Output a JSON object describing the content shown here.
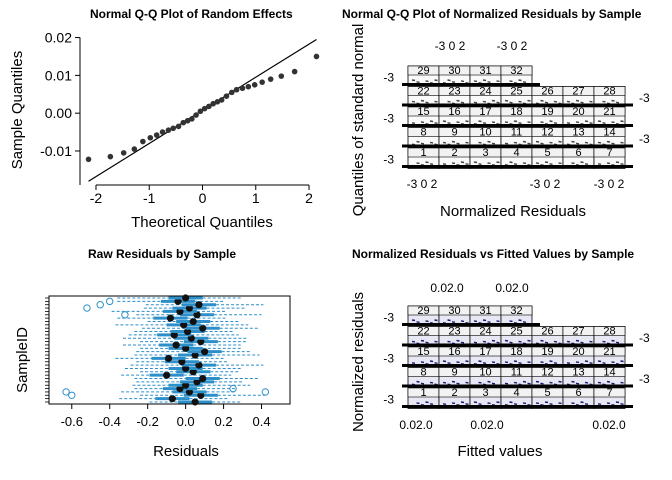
{
  "panels": {
    "qq_random_effects": {
      "title": "Normal Q-Q Plot of Random Effects",
      "xlabel": "Theoretical Quantiles",
      "ylabel": "Sample Quantiles",
      "xticks": [
        "-2",
        "-1",
        "0",
        "1",
        "2"
      ],
      "yticks": [
        "-0.01",
        "0.00",
        "0.01",
        "0.02"
      ]
    },
    "qq_normalized_residuals": {
      "title": "Normal Q-Q Plot of Normalized Residuals by Sample",
      "xlabel": "Normalized Residuals",
      "ylabel": "Quantiles of standard normal",
      "tick_text": "-3 0 2",
      "ytick_text": "-3",
      "strip_labels": [
        [
          "29",
          "30",
          "31",
          "32"
        ],
        [
          "22",
          "23",
          "24",
          "25",
          "26",
          "27",
          "28"
        ],
        [
          "15",
          "16",
          "17",
          "18",
          "19",
          "20",
          "21"
        ],
        [
          "8",
          "9",
          "10",
          "11",
          "12",
          "13",
          "14"
        ],
        [
          "1",
          "2",
          "3",
          "4",
          "5",
          "6",
          "7"
        ]
      ]
    },
    "raw_residuals": {
      "title": "Raw Residuals by Sample",
      "xlabel": "Residuals",
      "ylabel": "SampleID",
      "xticks": [
        "-0.6",
        "-0.4",
        "-0.2",
        "0.0",
        "0.2",
        "0.4"
      ]
    },
    "resid_vs_fitted": {
      "title": "Normalized Residuals vs Fitted Values by Sample",
      "xlabel": "Fitted values",
      "ylabel": "Normalized residuals",
      "tick_text": "0.02.0",
      "ytick_text": "-3",
      "strip_labels": [
        [
          "29",
          "30",
          "31",
          "32"
        ],
        [
          "22",
          "23",
          "24",
          "25",
          "26",
          "27",
          "28"
        ],
        [
          "15",
          "16",
          "17",
          "18",
          "19",
          "20",
          "21"
        ],
        [
          "8",
          "9",
          "10",
          "11",
          "12",
          "13",
          "14"
        ],
        [
          "1",
          "2",
          "3",
          "4",
          "5",
          "6",
          "7"
        ]
      ]
    }
  },
  "chart_data": [
    {
      "type": "scatter",
      "title": "Normal Q-Q Plot of Random Effects",
      "xlabel": "Theoretical Quantiles",
      "ylabel": "Sample Quantiles",
      "xlim": [
        -2.3,
        2.3
      ],
      "ylim": [
        -0.019,
        0.022
      ],
      "points": [
        [
          -2.14,
          -0.0122
        ],
        [
          -1.73,
          -0.0115
        ],
        [
          -1.48,
          -0.0105
        ],
        [
          -1.28,
          -0.0095
        ],
        [
          -1.12,
          -0.0075
        ],
        [
          -0.98,
          -0.0065
        ],
        [
          -0.86,
          -0.0058
        ],
        [
          -0.75,
          -0.005
        ],
        [
          -0.64,
          -0.0045
        ],
        [
          -0.55,
          -0.004
        ],
        [
          -0.45,
          -0.0035
        ],
        [
          -0.36,
          -0.0025
        ],
        [
          -0.28,
          -0.002
        ],
        [
          -0.2,
          -0.0015
        ],
        [
          -0.12,
          -0.0005
        ],
        [
          -0.04,
          0.0005
        ],
        [
          0.04,
          0.0012
        ],
        [
          0.12,
          0.0018
        ],
        [
          0.2,
          0.0025
        ],
        [
          0.28,
          0.003
        ],
        [
          0.36,
          0.0035
        ],
        [
          0.45,
          0.0045
        ],
        [
          0.55,
          0.0055
        ],
        [
          0.64,
          0.0062
        ],
        [
          0.75,
          0.0066
        ],
        [
          0.86,
          0.007
        ],
        [
          0.98,
          0.0075
        ],
        [
          1.12,
          0.0082
        ],
        [
          1.28,
          0.009
        ],
        [
          1.48,
          0.0098
        ],
        [
          1.73,
          0.011
        ],
        [
          2.14,
          0.015
        ]
      ],
      "reference_line": [
        [
          -2.14,
          -0.018
        ],
        [
          2.14,
          0.0195
        ]
      ]
    },
    {
      "type": "boxplot",
      "title": "Raw Residuals by Sample",
      "xlabel": "Residuals",
      "ylabel": "SampleID",
      "xlim": [
        -0.72,
        0.55
      ],
      "sample_count": 32,
      "medians": [
        0.05,
        -0.07,
        0.08,
        0.02,
        -0.03,
        0.0,
        0.06,
        0.09,
        -0.1,
        0.04,
        0.0,
        0.07,
        -0.02,
        -0.09,
        0.05,
        0.1,
        0.0,
        -0.05,
        0.08,
        0.03,
        -0.06,
        0.01,
        0.09,
        -0.01,
        0.04,
        -0.08,
        0.06,
        -0.03,
        0.02,
        0.07,
        -0.04,
        0.0
      ],
      "outliers": [
        [
          -0.6,
          3
        ],
        [
          -0.63,
          4
        ],
        [
          0.25,
          5
        ],
        [
          0.42,
          4
        ],
        [
          -0.52,
          29
        ],
        [
          -0.45,
          30
        ],
        [
          -0.4,
          31
        ],
        [
          -0.32,
          27
        ]
      ]
    }
  ]
}
